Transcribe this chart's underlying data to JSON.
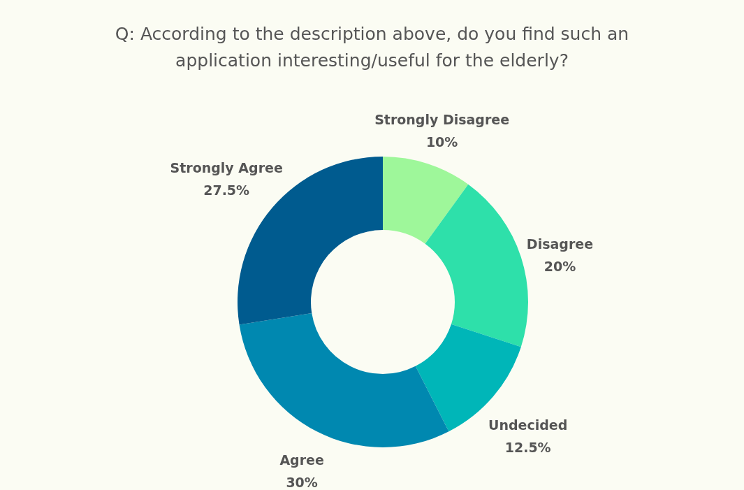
{
  "chart_data": {
    "type": "donut",
    "title": "Q: According to the description above, do you find such an application interesting/useful for the elderly?",
    "categories": [
      "Strongly Disagree",
      "Disagree",
      "Undecided",
      "Agree",
      "Strongly Agree"
    ],
    "values": [
      10,
      20,
      12.5,
      30,
      27.5
    ],
    "value_labels": [
      "10%",
      "20%",
      "12.5%",
      "30%",
      "27.5%"
    ],
    "colors": [
      "#9ef79a",
      "#2ee0aa",
      "#00b6b8",
      "#0088b0",
      "#005b8f"
    ],
    "legend": false
  }
}
